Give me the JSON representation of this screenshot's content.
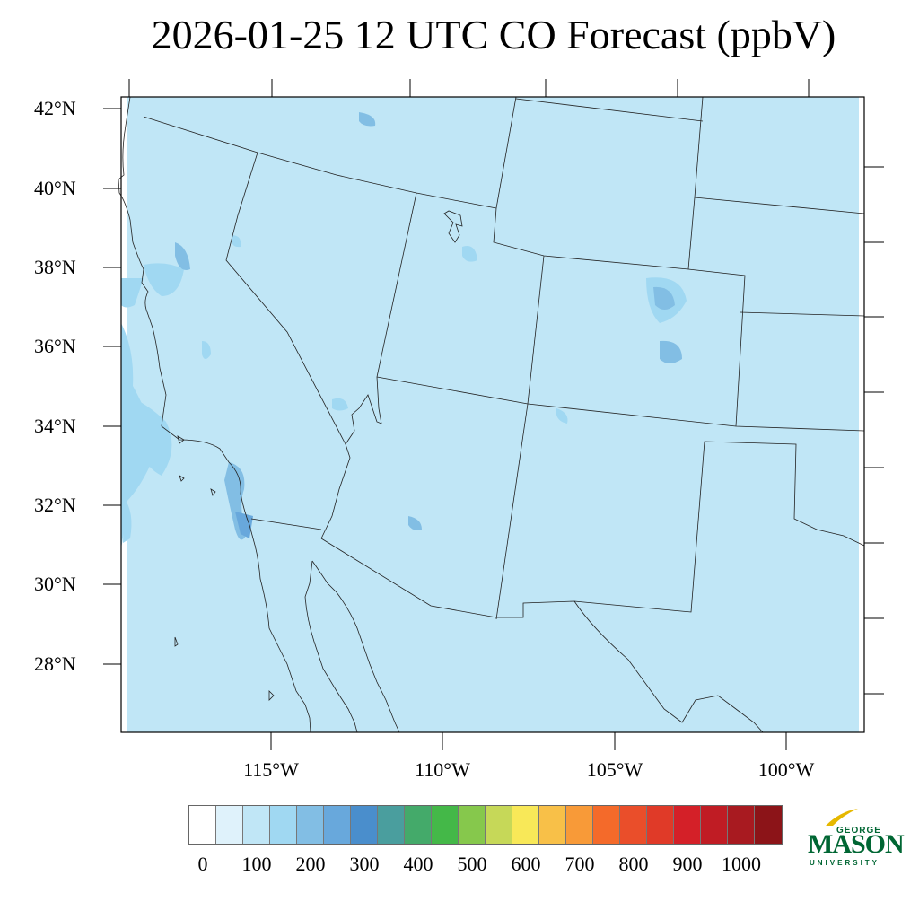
{
  "title": "2026-01-25 12 UTC CO Forecast (ppbV)",
  "lat_labels": [
    "42°N",
    "40°N",
    "38°N",
    "36°N",
    "34°N",
    "32°N",
    "30°N",
    "28°N"
  ],
  "lon_labels": [
    "115°W",
    "110°W",
    "105°W",
    "100°W"
  ],
  "colorbar": {
    "colors": [
      "#ffffff",
      "#dff2fb",
      "#c0e6f6",
      "#a0d8f2",
      "#82bee4",
      "#68a8dc",
      "#4a8ecc",
      "#4a9e9e",
      "#44aa6a",
      "#44b848",
      "#86c84c",
      "#c6d858",
      "#f8e858",
      "#f8c048",
      "#f89a38",
      "#f46a2a",
      "#ea4e2a",
      "#e03a28",
      "#d42028",
      "#c01c24",
      "#a81a20",
      "#8c1418"
    ],
    "ticks": [
      "0",
      "100",
      "200",
      "300",
      "400",
      "500",
      "600",
      "700",
      "800",
      "900",
      "1000"
    ]
  },
  "logo": {
    "line1": "GEORGE",
    "line2": "MASON",
    "line3": "UNIVERSITY",
    "color": "#006633",
    "accent": "#e6b800"
  },
  "map": {
    "background_color": "#c0e6f6",
    "enhanced_color": "#a0d8f2",
    "high_color": "#82bee4",
    "peak_color": "#68a8dc"
  }
}
